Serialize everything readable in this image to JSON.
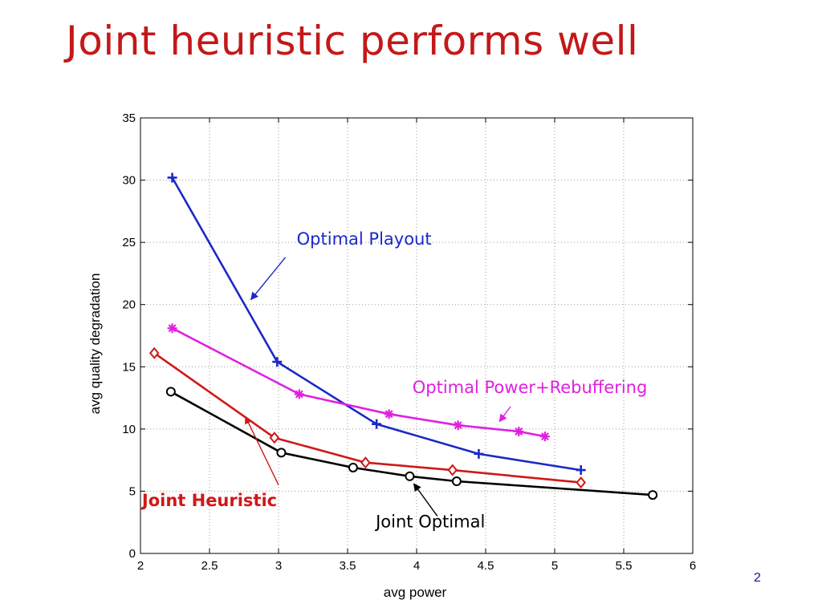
{
  "slide": {
    "title": "Joint heuristic performs well",
    "page_number": "2"
  },
  "colors": {
    "title": "#c41818",
    "optimal_playout": "#1c28c8",
    "optimal_power_rebuffering": "#e020e0",
    "joint_heuristic": "#d01818",
    "joint_optimal": "#000000"
  },
  "chart_data": {
    "type": "line",
    "xlabel": "avg power",
    "ylabel": "avg quality degradation",
    "xlim": [
      2,
      6
    ],
    "ylim": [
      0,
      35
    ],
    "x_ticks": [
      2,
      2.5,
      3,
      3.5,
      4,
      4.5,
      5,
      5.5,
      6
    ],
    "x_tick_labels": [
      "2",
      "2.5",
      "3",
      "3.5",
      "4",
      "4.5",
      "5",
      "5.5",
      "6"
    ],
    "y_ticks": [
      0,
      5,
      10,
      15,
      20,
      25,
      30,
      35
    ],
    "y_tick_labels": [
      "0",
      "5",
      "10",
      "15",
      "20",
      "25",
      "30",
      "35"
    ],
    "grid": true,
    "series": [
      {
        "key": "optimal_playout",
        "marker": "plus",
        "color": "#1c28c8",
        "x": [
          2.23,
          2.99,
          3.71,
          4.45,
          5.19
        ],
        "y": [
          30.2,
          15.4,
          10.4,
          8.0,
          6.7
        ]
      },
      {
        "key": "optimal_power_rebuffering",
        "marker": "star",
        "color": "#e020e0",
        "x": [
          2.23,
          3.15,
          3.8,
          4.3,
          4.74,
          4.93
        ],
        "y": [
          18.1,
          12.8,
          11.2,
          10.3,
          9.8,
          9.4
        ]
      },
      {
        "key": "joint_heuristic",
        "marker": "diamond",
        "color": "#d01818",
        "x": [
          2.1,
          2.97,
          3.63,
          4.26,
          5.19
        ],
        "y": [
          16.1,
          9.3,
          7.3,
          6.7,
          5.7
        ]
      },
      {
        "key": "joint_optimal",
        "marker": "circle",
        "color": "#000000",
        "x": [
          2.22,
          3.02,
          3.54,
          3.95,
          4.29,
          5.71
        ],
        "y": [
          13.0,
          8.1,
          6.9,
          6.2,
          5.8,
          4.7
        ]
      }
    ],
    "annotations": [
      {
        "key": "optimal_playout",
        "text": "Optimal Playout",
        "color": "#1c28c8",
        "bold": false,
        "text_at": [
          3.62,
          24.8
        ],
        "arrow_from": [
          3.05,
          23.8
        ],
        "arrow_to": [
          2.8,
          20.4
        ]
      },
      {
        "key": "optimal_power_rebuffering",
        "text": "Optimal Power+Rebuffering",
        "color": "#e020e0",
        "bold": false,
        "text_at": [
          4.82,
          12.9
        ],
        "arrow_from": [
          4.68,
          11.8
        ],
        "arrow_to": [
          4.6,
          10.6
        ]
      },
      {
        "key": "joint_heuristic",
        "text": "Joint Heuristic",
        "color": "#d01818",
        "bold": true,
        "text_at": [
          2.5,
          3.8
        ],
        "arrow_from": [
          3.0,
          5.5
        ],
        "arrow_to": [
          2.76,
          11.0
        ]
      },
      {
        "key": "joint_optimal",
        "text": "Joint Optimal",
        "color": "#000000",
        "bold": false,
        "text_at": [
          4.1,
          2.1
        ],
        "arrow_from": [
          4.15,
          3.0
        ],
        "arrow_to": [
          3.98,
          5.6
        ]
      }
    ]
  }
}
